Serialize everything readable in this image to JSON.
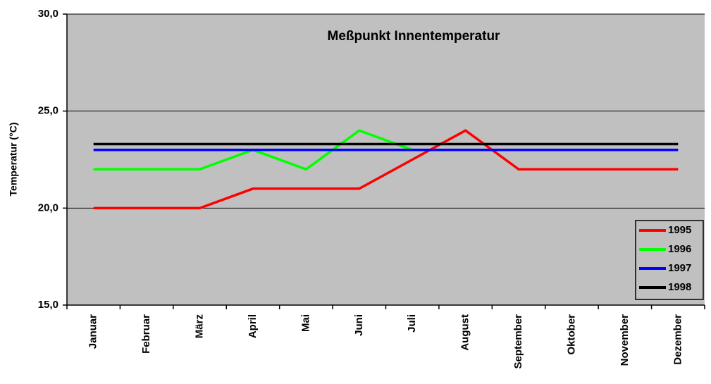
{
  "chart_data": {
    "type": "line",
    "title": "Meßpunkt Innentemperatur",
    "y_label": "Temperatur (°C)",
    "categories": [
      "Januar",
      "Februar",
      "März",
      "April",
      "Mai",
      "Juni",
      "Juli",
      "August",
      "September",
      "Oktober",
      "November",
      "Dezember"
    ],
    "series": [
      {
        "name": "1995",
        "color": "#ff0000",
        "values": [
          20,
          20,
          20,
          21,
          21,
          21,
          22.5,
          24,
          22,
          22,
          22,
          22
        ]
      },
      {
        "name": "1996",
        "color": "#00ff00",
        "values": [
          22,
          22,
          22,
          23,
          22,
          24,
          23,
          23,
          23,
          23,
          23,
          23
        ]
      },
      {
        "name": "1997",
        "color": "#0000ff",
        "values": [
          23,
          23,
          23,
          23,
          23,
          23,
          23,
          23,
          23,
          23,
          23,
          23
        ]
      },
      {
        "name": "1998",
        "color": "#000000",
        "values": [
          23.3,
          23.3,
          23.3,
          23.3,
          23.3,
          23.3,
          23.3,
          23.3,
          23.3,
          23.3,
          23.3,
          23.3
        ]
      }
    ],
    "ylim": [
      15,
      30
    ],
    "yticks": [
      {
        "value": 15,
        "label": "15,0"
      },
      {
        "value": 20,
        "label": "20,0"
      },
      {
        "value": 25,
        "label": "25,0"
      },
      {
        "value": 30,
        "label": "30,0"
      }
    ],
    "grid": true,
    "legend": "lower right",
    "background": "#c0c0c0"
  }
}
